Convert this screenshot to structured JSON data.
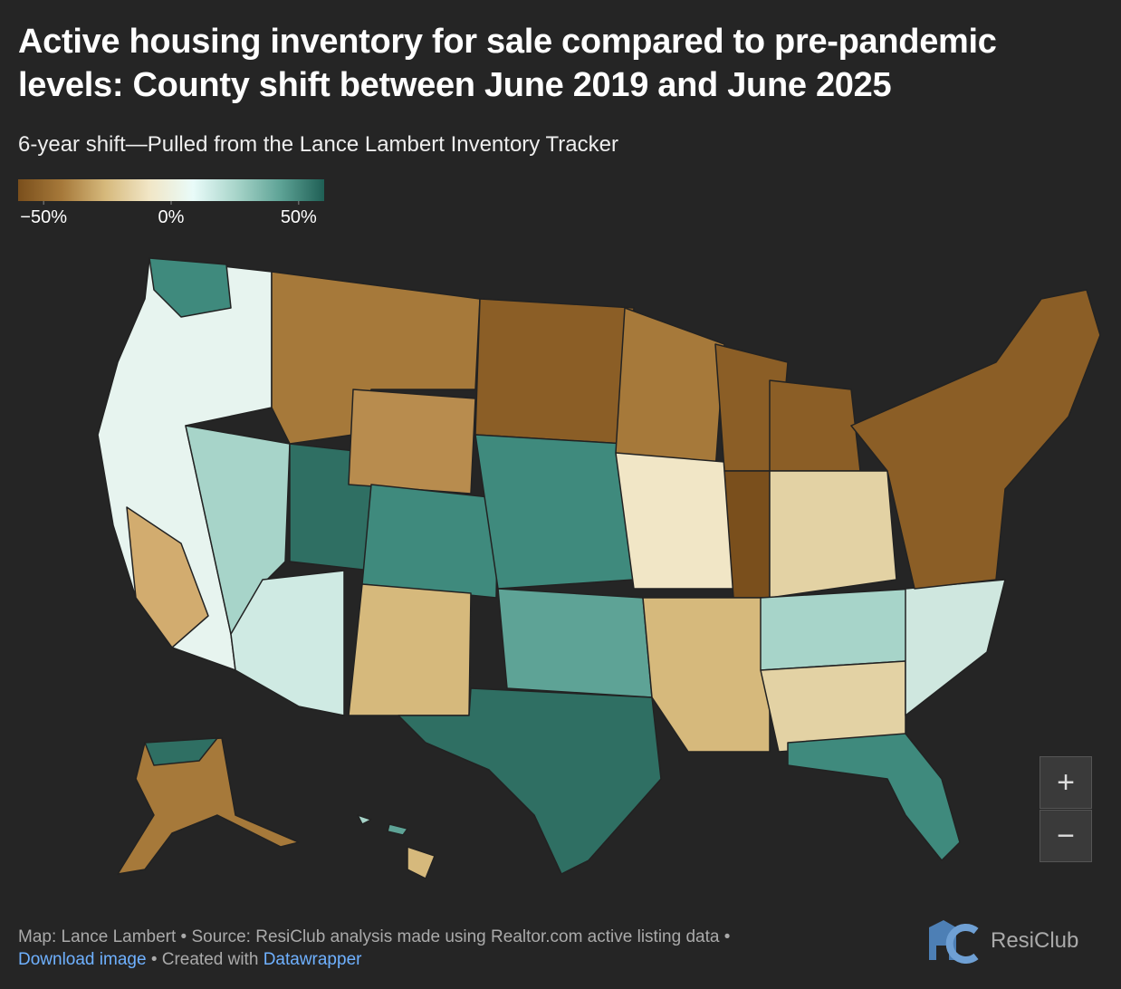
{
  "header": {
    "title": "Active housing inventory for sale compared to pre-pandemic levels: County shift between June 2019 and June 2025",
    "subtitle": "6-year shift—Pulled from the Lance Lambert Inventory Tracker"
  },
  "legend": {
    "range": [
      -60,
      60
    ],
    "colors": [
      "#7a4f1c",
      "#a6793a",
      "#d6b97c",
      "#f1e6c6",
      "#e9fbf9",
      "#a7d4c9",
      "#5ea396",
      "#1f5f55"
    ],
    "ticks": [
      {
        "value": -50,
        "label": "−50%"
      },
      {
        "value": 0,
        "label": "0%"
      },
      {
        "value": 50,
        "label": "50%"
      }
    ]
  },
  "zoom": {
    "in": "+",
    "out": "−"
  },
  "footer": {
    "credit": "Map: Lance Lambert • Source: ResiClub analysis made using Realtor.com active listing data •",
    "download": "Download image",
    "created": "• Created with",
    "tool": "Datawrapper",
    "logo": "ResiClub"
  }
}
